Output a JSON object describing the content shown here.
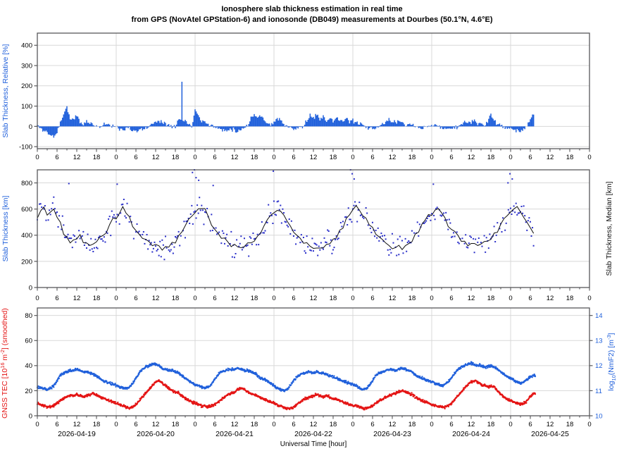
{
  "title": {
    "line1": "Ionosphere slab thickness estimation in real time",
    "line2": "from GPS (NovAtel GPStation-6) and ionosonde (DB049) measurements at Dourbes (50.1°N, 4.6°E)"
  },
  "colors": {
    "blue": "#2060db",
    "scatter_blue": "#2a2fc9",
    "red": "#e41414",
    "median_black": "#111111",
    "frame": "#58585a",
    "grid": "#d8d8d8",
    "text": "#000000"
  },
  "x_axis": {
    "title": "Universal Time [hour]",
    "hours_span": 168,
    "major_tick_step": 6,
    "minor_tick_step": 3,
    "hour_label_values": [
      0,
      6,
      12,
      18
    ],
    "dates": [
      "2026-04-19",
      "2026-04-20",
      "2026-04-21",
      "2026-04-22",
      "2026-04-23",
      "2026-04-24",
      "2026-04-25"
    ]
  },
  "chart_data": [
    {
      "type": "bar",
      "name": "relative-slab-thickness",
      "ylabel": "Slab Thickness, Relative [%]",
      "ylabel_color": "blue",
      "ylim": [
        -110,
        460
      ],
      "yticks": [
        -100,
        0,
        100,
        200,
        300,
        400
      ],
      "x_step_hours": 1,
      "x_end_hour": 151.3,
      "bar_noise_sigma": 5,
      "values": [
        5,
        -10,
        -20,
        -30,
        -45,
        -50,
        -30,
        20,
        60,
        95,
        40,
        30,
        55,
        20,
        10,
        25,
        15,
        10,
        5,
        -5,
        10,
        15,
        5,
        0,
        -5,
        -10,
        -15,
        -10,
        -5,
        -20,
        -25,
        -20,
        -15,
        -10,
        0,
        10,
        25,
        30,
        20,
        15,
        10,
        5,
        0,
        35,
        30,
        30,
        10,
        5,
        80,
        60,
        30,
        20,
        10,
        5,
        -5,
        -10,
        -15,
        -20,
        -15,
        -10,
        -20,
        -25,
        -15,
        -5,
        5,
        45,
        60,
        40,
        55,
        30,
        20,
        10,
        20,
        40,
        30,
        10,
        0,
        -10,
        -15,
        -10,
        -5,
        0,
        30,
        50,
        40,
        60,
        35,
        55,
        30,
        40,
        20,
        50,
        30,
        25,
        40,
        20,
        30,
        20,
        10,
        5,
        -5,
        -10,
        -15,
        -10,
        0,
        10,
        20,
        35,
        25,
        15,
        30,
        20,
        10,
        15,
        5,
        0,
        -10,
        -15,
        -5,
        5,
        10,
        5,
        0,
        -5,
        -10,
        -15,
        -10,
        -5,
        0,
        5,
        15,
        25,
        20,
        30,
        15,
        10,
        5,
        20,
        60,
        30,
        15,
        5,
        -5,
        -10,
        -10,
        -15,
        -20,
        -25,
        -15,
        0,
        40,
        65
      ],
      "spikes": [
        {
          "t": 44,
          "v": 220
        }
      ]
    },
    {
      "type": "scatter",
      "name": "slab-thickness",
      "ylabel": "Slab Thickness [km]",
      "ylabel_color": "blue",
      "right_ylabel": "Slab Thickness, Median [km]",
      "ylim": [
        0,
        900
      ],
      "yticks": [
        0,
        200,
        400,
        600,
        800
      ],
      "x_step_hours": 1,
      "x_end_hour": 151.3,
      "scatter_sigma": 45,
      "scatter_step_hours": 0.3333,
      "median_values": [
        530,
        570,
        610,
        580,
        590,
        600,
        560,
        500,
        430,
        380,
        360,
        350,
        380,
        410,
        360,
        330,
        320,
        330,
        350,
        370,
        390,
        430,
        480,
        520,
        540,
        580,
        600,
        570,
        530,
        480,
        440,
        410,
        380,
        360,
        340,
        330,
        320,
        310,
        300,
        310,
        320,
        330,
        350,
        380,
        420,
        460,
        510,
        550,
        560,
        600,
        620,
        590,
        540,
        490,
        450,
        420,
        390,
        370,
        350,
        330,
        310,
        300,
        310,
        320,
        330,
        340,
        360,
        390,
        430,
        470,
        520,
        560,
        570,
        600,
        590,
        560,
        520,
        470,
        430,
        400,
        370,
        350,
        330,
        310,
        300,
        290,
        300,
        310,
        320,
        330,
        350,
        380,
        420,
        470,
        520,
        560,
        580,
        610,
        600,
        570,
        530,
        480,
        440,
        410,
        380,
        360,
        340,
        320,
        310,
        300,
        310,
        320,
        330,
        350,
        370,
        400,
        430,
        470,
        510,
        550,
        560,
        590,
        600,
        580,
        540,
        490,
        450,
        420,
        390,
        370,
        350,
        340,
        330,
        320,
        330,
        340,
        350,
        360,
        380,
        410,
        440,
        480,
        520,
        560,
        570,
        600,
        610,
        580,
        540,
        500,
        460,
        420
      ],
      "scatter_outliers": [
        [
          9.6,
          795
        ],
        [
          24.3,
          790
        ],
        [
          47.2,
          880
        ],
        [
          47.8,
          900
        ],
        [
          48.3,
          840
        ],
        [
          49.1,
          820
        ],
        [
          53.5,
          780
        ],
        [
          71.8,
          890
        ],
        [
          95.3,
          900
        ],
        [
          95.8,
          870
        ],
        [
          96.4,
          830
        ],
        [
          120.5,
          790
        ],
        [
          143.2,
          800
        ],
        [
          143.8,
          870
        ],
        [
          144.5,
          830
        ]
      ]
    },
    {
      "type": "line",
      "name": "tec-and-nmf2",
      "ylabel_parts": [
        {
          "t": "GNSS TEC [10"
        },
        {
          "t": "16",
          "sup": 1
        },
        {
          "t": " m"
        },
        {
          "t": "-2",
          "sup": 1
        },
        {
          "t": "] (smoothed)"
        }
      ],
      "ylabel_color": "red",
      "right_ylabel_parts": [
        {
          "t": "log"
        },
        {
          "t": "10",
          "sub": 1
        },
        {
          "t": "(NmF2) [m"
        },
        {
          "t": "-3",
          "sup": 1
        },
        {
          "t": "]"
        }
      ],
      "ylim": [
        0,
        86
      ],
      "yticks": [
        0,
        20,
        40,
        60,
        80
      ],
      "right_yticks": [
        10,
        11,
        12,
        13,
        14
      ],
      "right_lo": 10,
      "right_left_per_unit": 20,
      "x_step_hours": 1,
      "x_end_hour": 151.5,
      "dot_step_hours": 0.1,
      "dot_noise_sigma": 0.5,
      "tec_values": [
        10,
        9,
        8,
        7,
        7,
        8,
        10,
        12,
        14,
        15,
        16,
        16,
        17,
        16,
        15,
        16,
        17,
        18,
        17,
        15,
        14,
        13,
        12,
        11,
        10,
        9,
        8,
        7,
        6,
        7,
        9,
        12,
        15,
        18,
        21,
        24,
        27,
        28,
        26,
        24,
        22,
        20,
        19,
        18,
        16,
        14,
        12,
        11,
        10,
        9,
        8,
        8,
        7,
        8,
        9,
        11,
        13,
        15,
        17,
        18,
        19,
        21,
        22,
        21,
        19,
        18,
        17,
        16,
        14,
        13,
        12,
        11,
        10,
        9,
        8,
        7,
        6,
        6,
        7,
        9,
        11,
        13,
        14,
        15,
        16,
        17,
        16,
        15,
        16,
        15,
        14,
        13,
        12,
        11,
        10,
        9,
        8,
        8,
        7,
        6,
        6,
        7,
        8,
        10,
        12,
        13,
        15,
        16,
        17,
        18,
        19,
        20,
        19,
        18,
        17,
        15,
        13,
        12,
        11,
        10,
        9,
        8,
        8,
        7,
        7,
        8,
        10,
        13,
        16,
        19,
        22,
        25,
        27,
        28,
        27,
        25,
        24,
        23,
        24,
        23,
        20,
        17,
        15,
        13,
        12,
        11,
        10,
        9,
        10,
        12,
        15,
        18
      ],
      "nmf2_values": [
        11.15,
        11.1,
        11.1,
        11.05,
        11.1,
        11.2,
        11.4,
        11.6,
        11.7,
        11.75,
        11.8,
        11.8,
        11.85,
        11.8,
        11.75,
        11.75,
        11.7,
        11.65,
        11.6,
        11.5,
        11.4,
        11.35,
        11.3,
        11.25,
        11.2,
        11.15,
        11.1,
        11.1,
        11.15,
        11.3,
        11.5,
        11.7,
        11.85,
        11.95,
        12.0,
        12.05,
        12.05,
        12.0,
        11.9,
        11.85,
        11.8,
        11.8,
        11.75,
        11.7,
        11.6,
        11.5,
        11.4,
        11.3,
        11.25,
        11.2,
        11.15,
        11.1,
        11.15,
        11.25,
        11.45,
        11.65,
        11.75,
        11.8,
        11.85,
        11.85,
        11.85,
        11.9,
        11.85,
        11.8,
        11.8,
        11.75,
        11.7,
        11.6,
        11.5,
        11.45,
        11.4,
        11.3,
        11.2,
        11.1,
        11.05,
        11.0,
        11.05,
        11.2,
        11.4,
        11.55,
        11.65,
        11.7,
        11.75,
        11.75,
        11.7,
        11.75,
        11.7,
        11.7,
        11.65,
        11.6,
        11.55,
        11.5,
        11.45,
        11.4,
        11.35,
        11.3,
        11.25,
        11.2,
        11.1,
        11.05,
        11.1,
        11.2,
        11.4,
        11.6,
        11.7,
        11.75,
        11.8,
        11.85,
        11.85,
        11.8,
        11.85,
        11.9,
        11.85,
        11.8,
        11.75,
        11.65,
        11.55,
        11.5,
        11.45,
        11.4,
        11.35,
        11.3,
        11.25,
        11.2,
        11.25,
        11.35,
        11.5,
        11.7,
        11.85,
        11.95,
        12.0,
        12.05,
        12.1,
        12.05,
        12.0,
        12.0,
        11.95,
        11.95,
        12.0,
        11.95,
        11.85,
        11.75,
        11.65,
        11.55,
        11.5,
        11.4,
        11.35,
        11.3,
        11.35,
        11.45,
        11.55,
        11.6
      ]
    }
  ],
  "render": {
    "seed": 11
  }
}
